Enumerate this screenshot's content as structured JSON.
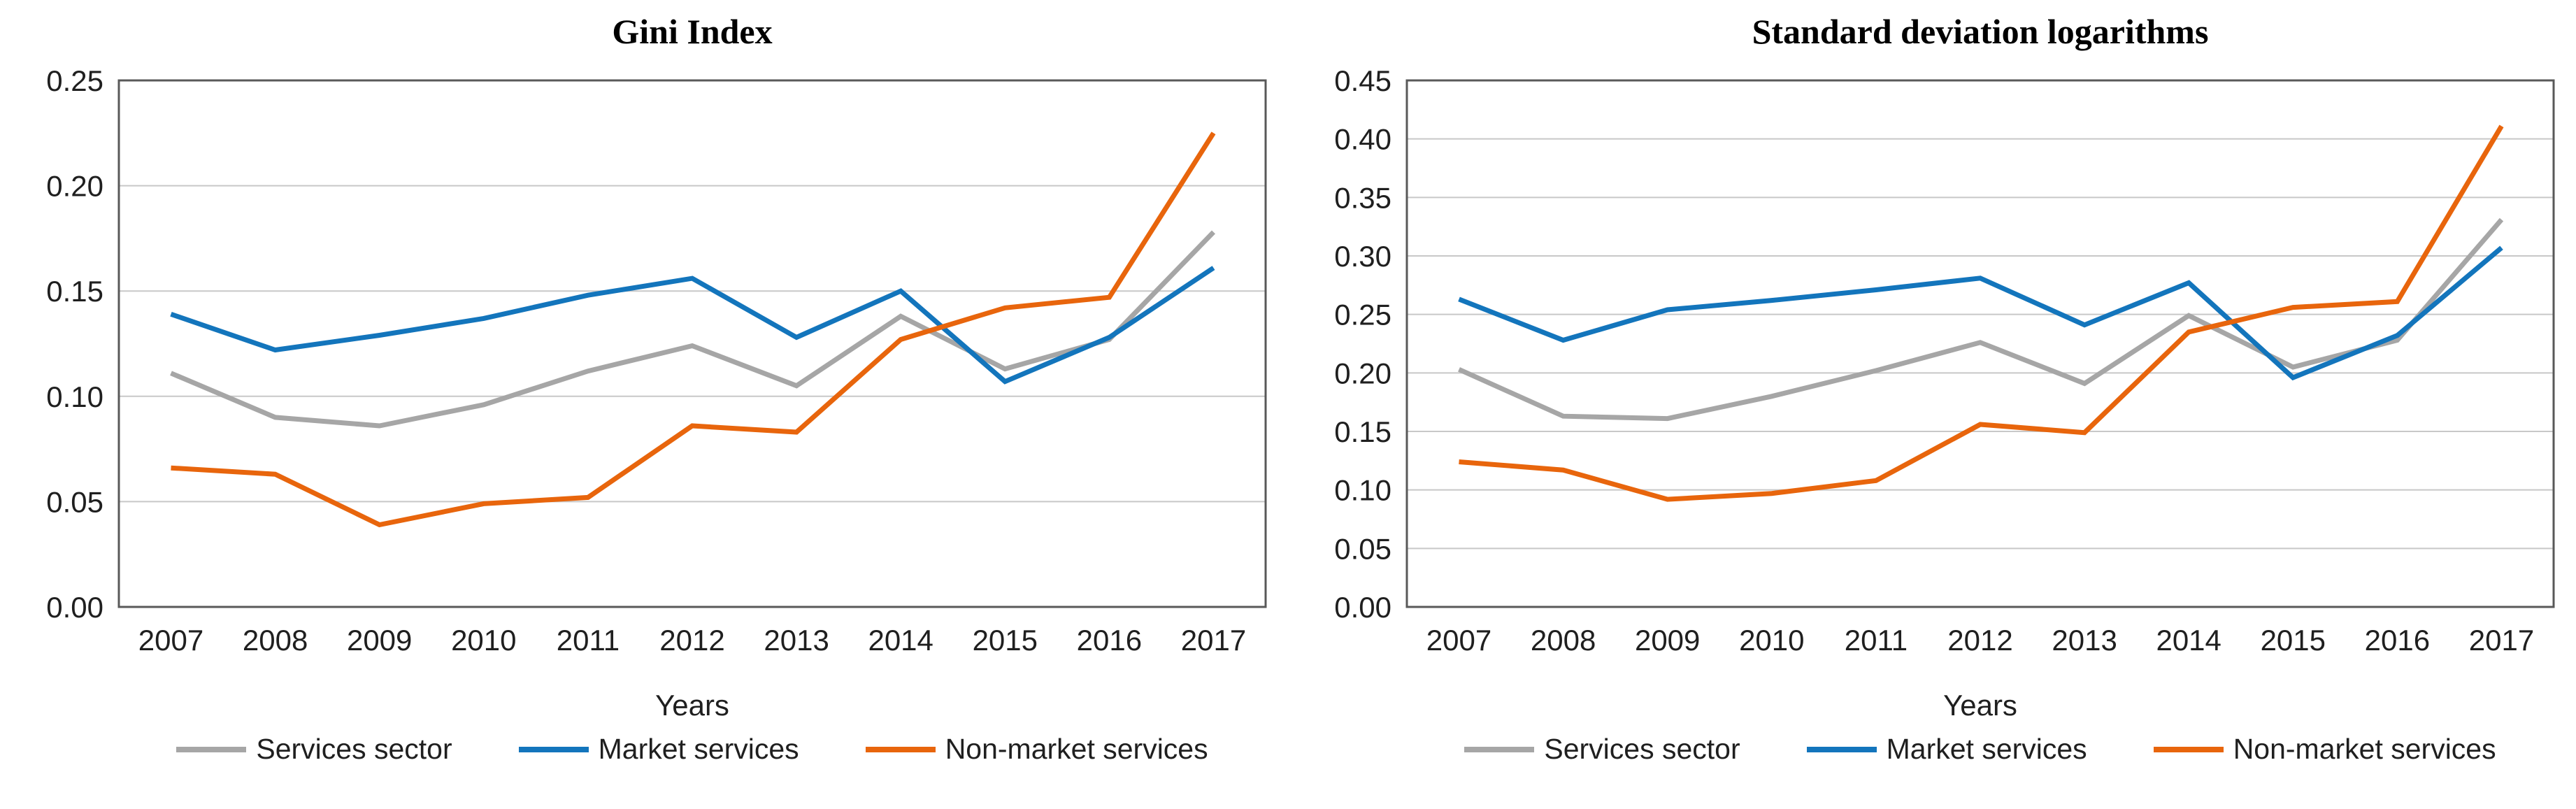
{
  "figure": {
    "background": "#ffffff"
  },
  "chart_data": [
    {
      "type": "line",
      "title": "Gini Index",
      "xlabel": "Years",
      "categories": [
        "2007",
        "2008",
        "2009",
        "2010",
        "2011",
        "2012",
        "2013",
        "2014",
        "2015",
        "2016",
        "2017"
      ],
      "ylim": [
        0,
        0.25
      ],
      "ytick_step": 0.05,
      "ytick_decimals": 2,
      "grid": "horizontal",
      "legend_position": "bottom",
      "frame_color": "#595959",
      "gridline_color": "#c8c8c8",
      "series": [
        {
          "name": "Services sector",
          "color": "#a6a6a6",
          "values": [
            0.111,
            0.09,
            0.086,
            0.096,
            0.112,
            0.124,
            0.105,
            0.138,
            0.113,
            0.127,
            0.178
          ]
        },
        {
          "name": "Market services",
          "color": "#1375bc",
          "values": [
            0.139,
            0.122,
            0.129,
            0.137,
            0.148,
            0.156,
            0.128,
            0.15,
            0.107,
            0.128,
            0.161
          ]
        },
        {
          "name": "Non-market services",
          "color": "#e8650c",
          "values": [
            0.066,
            0.063,
            0.039,
            0.049,
            0.052,
            0.086,
            0.083,
            0.127,
            0.142,
            0.147,
            0.225
          ]
        }
      ]
    },
    {
      "type": "line",
      "title": "Standard deviation logarithms",
      "xlabel": "Years",
      "categories": [
        "2007",
        "2008",
        "2009",
        "2010",
        "2011",
        "2012",
        "2013",
        "2014",
        "2015",
        "2016",
        "2017"
      ],
      "ylim": [
        0,
        0.45
      ],
      "ytick_step": 0.05,
      "ytick_decimals": 2,
      "grid": "horizontal",
      "legend_position": "bottom",
      "frame_color": "#595959",
      "gridline_color": "#c8c8c8",
      "series": [
        {
          "name": "Services sector",
          "color": "#a6a6a6",
          "values": [
            0.203,
            0.163,
            0.161,
            0.18,
            0.202,
            0.226,
            0.191,
            0.249,
            0.205,
            0.228,
            0.331
          ]
        },
        {
          "name": "Market services",
          "color": "#1375bc",
          "values": [
            0.263,
            0.228,
            0.254,
            0.262,
            0.271,
            0.281,
            0.241,
            0.277,
            0.196,
            0.232,
            0.307
          ]
        },
        {
          "name": "Non-market services",
          "color": "#e8650c",
          "values": [
            0.124,
            0.117,
            0.092,
            0.097,
            0.108,
            0.156,
            0.149,
            0.235,
            0.256,
            0.261,
            0.411
          ]
        }
      ]
    }
  ]
}
